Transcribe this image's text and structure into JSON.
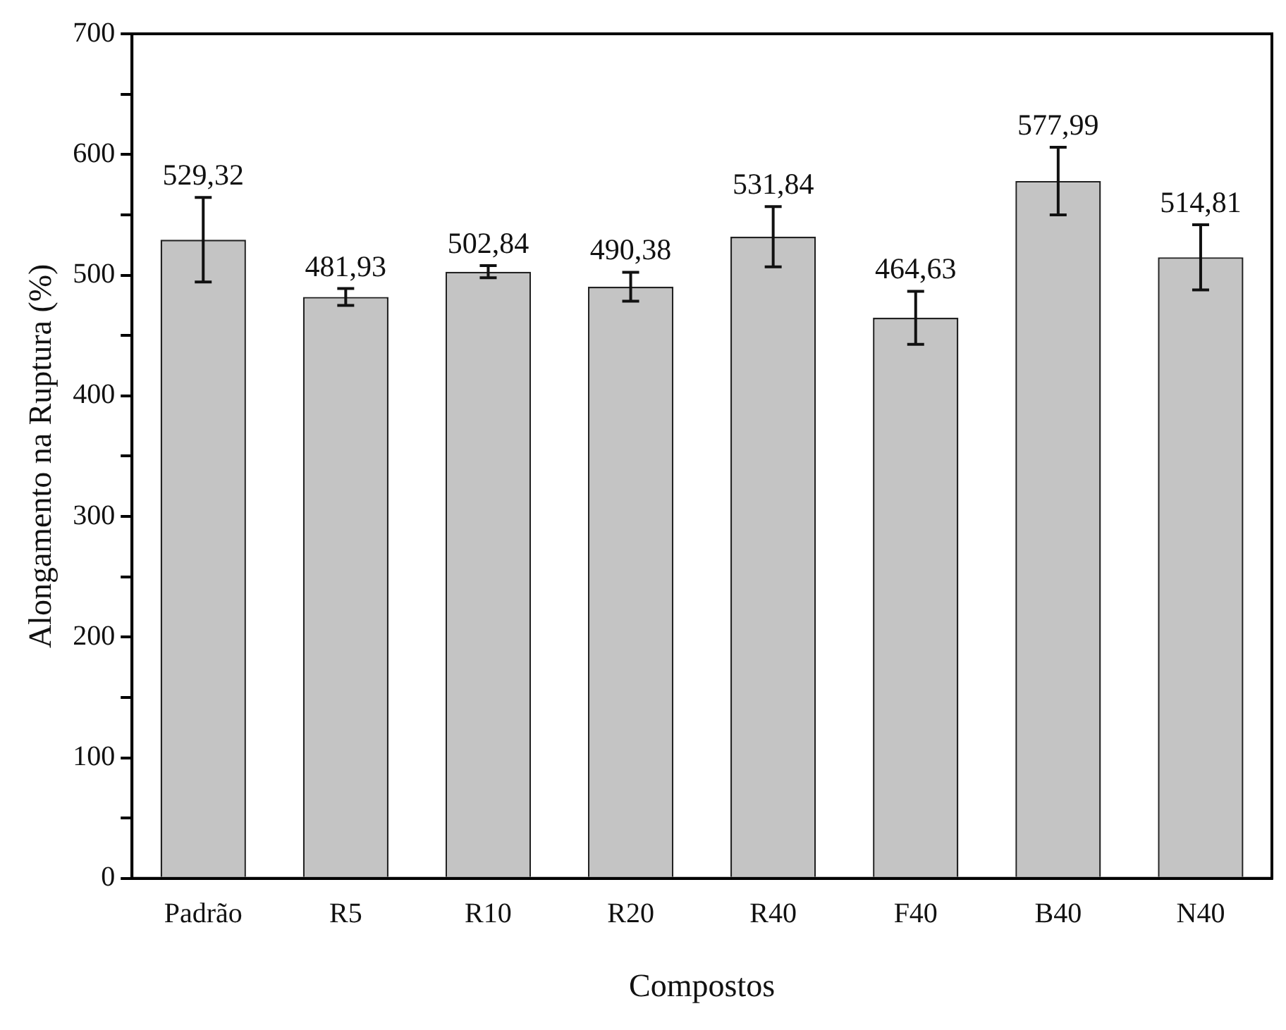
{
  "chart_data": {
    "type": "bar",
    "xlabel": "Compostos",
    "ylabel": "Alongamento na Ruptura (%)",
    "categories": [
      "Padrão",
      "R5",
      "R10",
      "R20",
      "R40",
      "F40",
      "B40",
      "N40"
    ],
    "values": [
      529.32,
      481.93,
      502.84,
      490.38,
      531.84,
      464.63,
      577.99,
      514.81
    ],
    "errors": [
      35,
      7,
      5,
      12,
      25,
      22,
      28,
      27
    ],
    "value_labels": [
      "529,32",
      "481,93",
      "502,84",
      "490,38",
      "531,84",
      "464,63",
      "577,99",
      "514,81"
    ],
    "color": "#c4c4c4",
    "ylim": [
      0,
      700
    ],
    "yticks": [
      0,
      {
        "value": 50,
        "label": null
      },
      100,
      {
        "value": 150,
        "label": null
      },
      200,
      {
        "value": 250,
        "label": null
      },
      300,
      {
        "value": 350,
        "label": null
      },
      400,
      {
        "value": 450,
        "label": null
      },
      500,
      {
        "value": 550,
        "label": null
      },
      600,
      {
        "value": 650,
        "label": null
      },
      700
    ],
    "grid": false,
    "legend": false
  }
}
